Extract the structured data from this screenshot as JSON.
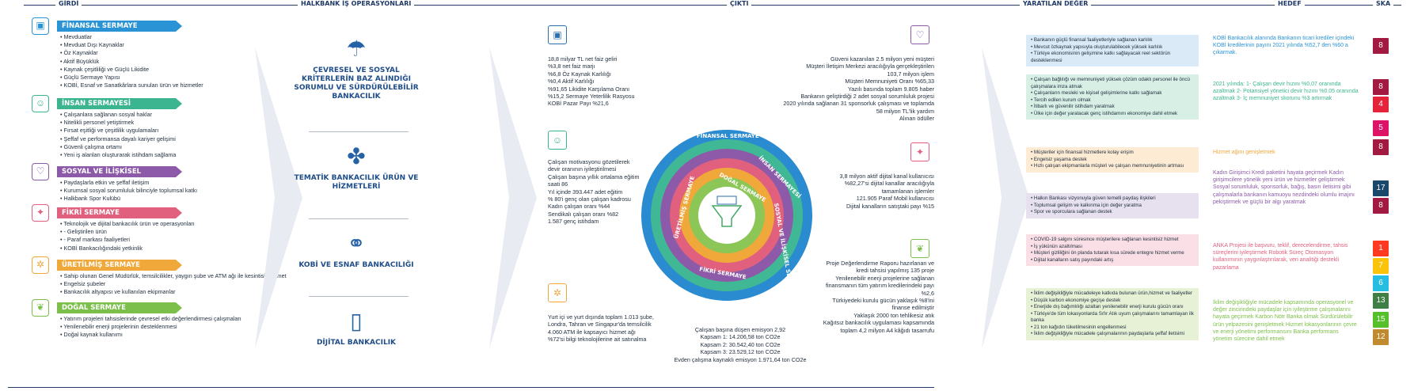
{
  "header": {
    "girdi": "GİRDİ",
    "is": "HALKBANK İŞ OPERASYONLARI",
    "cikti": "ÇIKTI",
    "deger": "YARATILAN DEĞER",
    "hedef": "HEDEF",
    "ska": "SKA"
  },
  "capitals": [
    {
      "title": "FİNANSAL SERMAYE",
      "color": "#2a93d5",
      "icon": "safe-icon",
      "items": [
        "Mevduatlar",
        "Mevduat Dışı Kaynaklar",
        "Öz Kaynaklar",
        "Aktif Büyüklük",
        "Kaynak çeşitliliği ve Güçlü Likidite",
        "Güçlü Sermaye Yapısı",
        "KOBİ, Esnaf ve Sanatkârlara sunulan ürün ve hizmetler"
      ]
    },
    {
      "title": "İNSAN SERMAYESİ",
      "color": "#3bb58f",
      "icon": "people-icon",
      "items": [
        "Çalışanlara sağlanan sosyal haklar",
        "Nitelikli personel yetiştirmek",
        "Fırsat eşitliği ve çeşitlilik uygulamaları",
        "Şeffaf ve performansa dayalı kariyer gelişimi",
        "Güvenli çalışma ortamı",
        "Yeni iş alanları oluşturarak istihdam sağlama"
      ]
    },
    {
      "title": "SOSYAL VE İLİŞKİSEL SERMAYE",
      "color": "#8c5aa8",
      "icon": "hands-icon",
      "items": [
        "Paydaşlarla etkin ve şeffaf iletişim",
        "Kurumsal sosyal sorumluluk bilinciyle toplumsal katkı",
        "Halkbank Spor Kulübü"
      ]
    },
    {
      "title": "FİKRİ SERMAYE",
      "color": "#e0607e",
      "icon": "bulb-icon",
      "items": [
        "Teknolojik ve dijital bankacılık ürün ve operasyonları",
        "- Geliştirilen ürün",
        "- Paraf markası faaliyetleri",
        "KOBİ Bankacılığındaki yetkinlik"
      ]
    },
    {
      "title": "ÜRETİLMİŞ SERMAYE",
      "color": "#f0a83a",
      "icon": "gear-icon",
      "items": [
        "Sahip olunan Genel Müdürlük, temsilcilikler, yaygın şube ve ATM ağı ile kesintisiz hizmet",
        "Engelsiz şubeler",
        "Bankacılık altyapısı ve kullanılan ekipmanlar"
      ]
    },
    {
      "title": "DOĞAL SERMAYE",
      "color": "#7cbf4a",
      "icon": "leaf-icon",
      "items": [
        "Yatırım projeleri tahsislerinde çevresel etki değerlendirmesi çalışmaları",
        "Yenilenebilir enerji projelerinin desteklenmesi",
        "Doğal kaynak kullanımı"
      ]
    }
  ],
  "business": [
    {
      "icon": "umbrella-icon",
      "title": "ÇEVRESEL VE SOSYAL KRİTERLERİN BAZ ALINDIĞI SORUMLU VE SÜRDÜRÜLEBİLİR BANKACILIK"
    },
    {
      "icon": "puzzle-icon",
      "title": "TEMATİK BANKACILIK ÜRÜN VE HİZMETLERİ"
    },
    {
      "icon": "handshake-icon",
      "title": "KOBİ VE ESNAF BANKACILIĞI"
    },
    {
      "icon": "phone-icon",
      "title": "DİJİTAL BANKACILIK"
    }
  ],
  "outputs": {
    "fin": [
      "18,8 milyar TL net faiz geliri",
      "%3,8 net faiz marjı",
      "%6,8 Öz Kaynak Karlılığı",
      "%0,4 Aktif Karlılığı",
      "%91,65 Likidite Karşılama Oranı",
      "%15,2 Sermaye Yeterlilik Rasyosu",
      "KOBİ Pazar Payı %21,6"
    ],
    "human": [
      "Çalışan motivasyonu gözetilerek devir oranının iyileştirilmesi",
      "Çalışan başına yıllık ortalama eğitim saati 86",
      "Yıl içinde 393.447 adet eğitim",
      "% 80'i genç olan çalışan kadrosu",
      "Kadın çalışan oranı %44",
      "Sendikalı çalışan oranı %82",
      "1.587 genç istihdam"
    ],
    "prod": [
      "Yurt içi ve yurt dışında toplam 1.013 şube, Londra, Tahran ve Singapur'da temsilcilik",
      "4.060 ATM ile kapsayıcı hizmet ağı",
      "%72'si bilgi teknolojilerine ait satınalma"
    ],
    "social": [
      "Güveni kazanılan 2.5 milyon yeni müşteri",
      "Müşteri İletişim Merkezi aracılığıyla gerçekleştirilen",
      "103,7 milyon işlem",
      "Müşteri Memnuniyeti Oranı %65,33",
      "Yazılı basında toplam 9.805 haber",
      "Bankanın geliştirdiği 2 adet sosyal sorumluluk projesi",
      "2020 yılında sağlanan 31 sponsorluk çalışması ve toplamda 58 milyon TL'lik yardım",
      "Alınan ödüller"
    ],
    "intel": [
      "3,8 milyon aktif dijital kanal kullanıcısı",
      "%82,27'si dijital kanallar aracılığıyla tamamlanan işlemler",
      "121.905 Paraf Mobil kullanıcısı",
      "Dijital kanalların satıştaki payı %15"
    ],
    "nat": [
      "Proje Değerlendirme Raporu hazırlanan ve kredi tahsisi yapılmış 135 proje",
      "Yenilenebilir enerji projelerine sağlanan finansmanın tüm yatırım kredilerindeki payı %2,6",
      "Türkiyedeki kurulu gücün yaklaşık %8'ini finanse edilmiştir",
      "Yaklaşık 2000 ton tehlikesiz atık",
      "Kağıtsız bankacılık uygulaması kapsamında toplam 4,2 milyon A4 kâğıdı tasarrufu"
    ],
    "emis": [
      "Çalışan başına düşen emisyon 2,92",
      "Kapsam 1: 14.206,58 ton CO2e",
      "Kapsam 2: 30.542,40 ton CO2e",
      "Kapsam 3: 23.529,12 ton CO2e",
      "Evden çalışma kaynaklı emisyon 1.971,64 ton CO2e"
    ]
  },
  "rings": [
    "FİNANSAL SERMAYE",
    "İNSAN SERMAYESİ",
    "SOSYAL VE İLİŞKİSEL SERMAYE",
    "FİKRİ SERMAYE",
    "ÜRETİLMİŞ SERMAYE",
    "DOĞAL SERMAYE"
  ],
  "values": [
    {
      "color": "#dbeaf7",
      "items": [
        "Bankanın güçlü finansal faaliyetleriyle sağlanan karlılık",
        "Mevcut özkaynak yapısıyla oluşturulabilecek yüksek karlılık",
        "Türkiye ekonomisinin gelişimine katkı sağlayacak reel sektörün desteklenmesi"
      ]
    },
    {
      "color": "#d8efe5",
      "items": [
        "Çalışan bağlılığı ve memnuniyeti yüksek çözüm odaklı personel ile öncü çalışmalara imza atmak",
        "Çalışanların mesleki ve kişisel gelişimlerine katkı sağlamak",
        "Tercih edilen kurum olmak",
        "İtibarlı ve güvenilir istihdam yaratmak",
        "Ülke için değer yaratacak genç istihdamını ekonomiye dahil etmek"
      ]
    },
    {
      "color": "#fdebd3",
      "items": [
        "Müşteriler için finansal hizmetlere kolay erişim",
        "Engelsiz yaşama destek",
        "Hızlı çalışan ekipmanlarla müşteri ve çalışan memnuniyetinin artması"
      ]
    },
    {
      "color": "#e7e0ef",
      "items": [
        "Halkın Bankası vizyonuyla güven temelli paydaş ilişkileri",
        "Toplumsal gelişim ve kalkınma için değer yaratma",
        "Spor ve sporculara sağlanan destek"
      ]
    },
    {
      "color": "#fae0e6",
      "items": [
        "COVID-19 salgını süresince müşterilere sağlanan kesintisiz hizmet",
        "İş yükünün azaltılması",
        "Müşteri gizliliğini ön planda tutarak kısa sürede entegre hizmet verme",
        "Dijital kanalların satış payındaki artış"
      ]
    },
    {
      "color": "#e6f1d6",
      "items": [
        "İklim değişikliğiyle mücadeleye katkıda bulunan ürün,hizmet ve faaliyetler",
        "Düşük karbon ekonomiye geçişe destek",
        "Enerjide dış bağımlılığı azaltan yenilenebilir enerji kurulu gücün oranı",
        "Türkiye'de tüm lokasyonlarda Sıfır Atık uyum çalışmalarını tamamlayan ilk banka",
        "21 ton kağıdın tüketilmesinin engellenmesi",
        "İklim değişikliğiyle mücadele çalışmalarının paydaşlarla şeffaf iletisimi"
      ]
    }
  ],
  "targets": [
    {
      "color": "#2a93d5",
      "text": "KOBİ Bankacılık alanında Bankanın ticari krediler içindeki KOBİ kredilerinin payını 2021 yılında %52,7 den %60 a çıkarmak."
    },
    {
      "color": "#3bb58f",
      "text": "2021 yılında: 1- Çalışan devir hızını %0,07 oranında azaltmak 2- Potansiyel yönetici devir hızını %0.05 oranında azaltmak 3- İç memnuniyet skorunu %3 artırmak"
    },
    {
      "color": "#f0a83a",
      "text": "Hizmet ağını genişletmek"
    },
    {
      "color": "#8c5aa8",
      "text": "Kadın Girişimci Kredi paketini hayata geçirmek Kadın girişimcilere yönelik yeni ürün ve hizmetler geliştirmek Sosyal sorumluluk, sponsorluk, bağış, basın iletisimi gibi çalışmalarla bankanın kamuoyu nezdindeki olumlu imajını pekiştirmek ve güçlü bir algı yaratmak"
    },
    {
      "color": "#e0607e",
      "text": "ANKA Projesi ile başvuru, teklif, derecelendirme, tahsis süreçlerini iyileştirmek Robotik Süreç Otomasyon kullanımının yaygınlaştırılarak, veri analitiği destekli pazarlama"
    },
    {
      "color": "#7cbf4a",
      "text": "İklim değişikliğiyle mücadele kapsamında operasyonel ve değer zincirindeki paydaşlar için iyileştirme çalışmalarını hayata geçirmek Karbon Nötr Banka olmak Sürdürülebilir ürün yelpazesini genişletmek Hizmet lokasyonlarının çevre ve enerji yönetimi performansını Banka performans yönetim sürecine dahil etmek"
    }
  ],
  "sdgs": [
    {
      "color": "#a21942",
      "label": "8"
    },
    {
      "color": "#a21942",
      "label": "8"
    },
    {
      "color": "#e5243b",
      "label": "4"
    },
    {
      "color": "#dd1367",
      "label": "5"
    },
    {
      "color": "#a21942",
      "label": "8"
    },
    {
      "color": "#19486a",
      "label": "17"
    },
    {
      "color": "#a21942",
      "label": "8"
    },
    {
      "color": "#ff3a21",
      "label": "1"
    },
    {
      "color": "#fcc30b",
      "label": "7"
    },
    {
      "color": "#26bde2",
      "label": "6"
    },
    {
      "color": "#3f7e44",
      "label": "13"
    },
    {
      "color": "#56c02b",
      "label": "15"
    },
    {
      "color": "#bf8b2e",
      "label": "12"
    }
  ]
}
